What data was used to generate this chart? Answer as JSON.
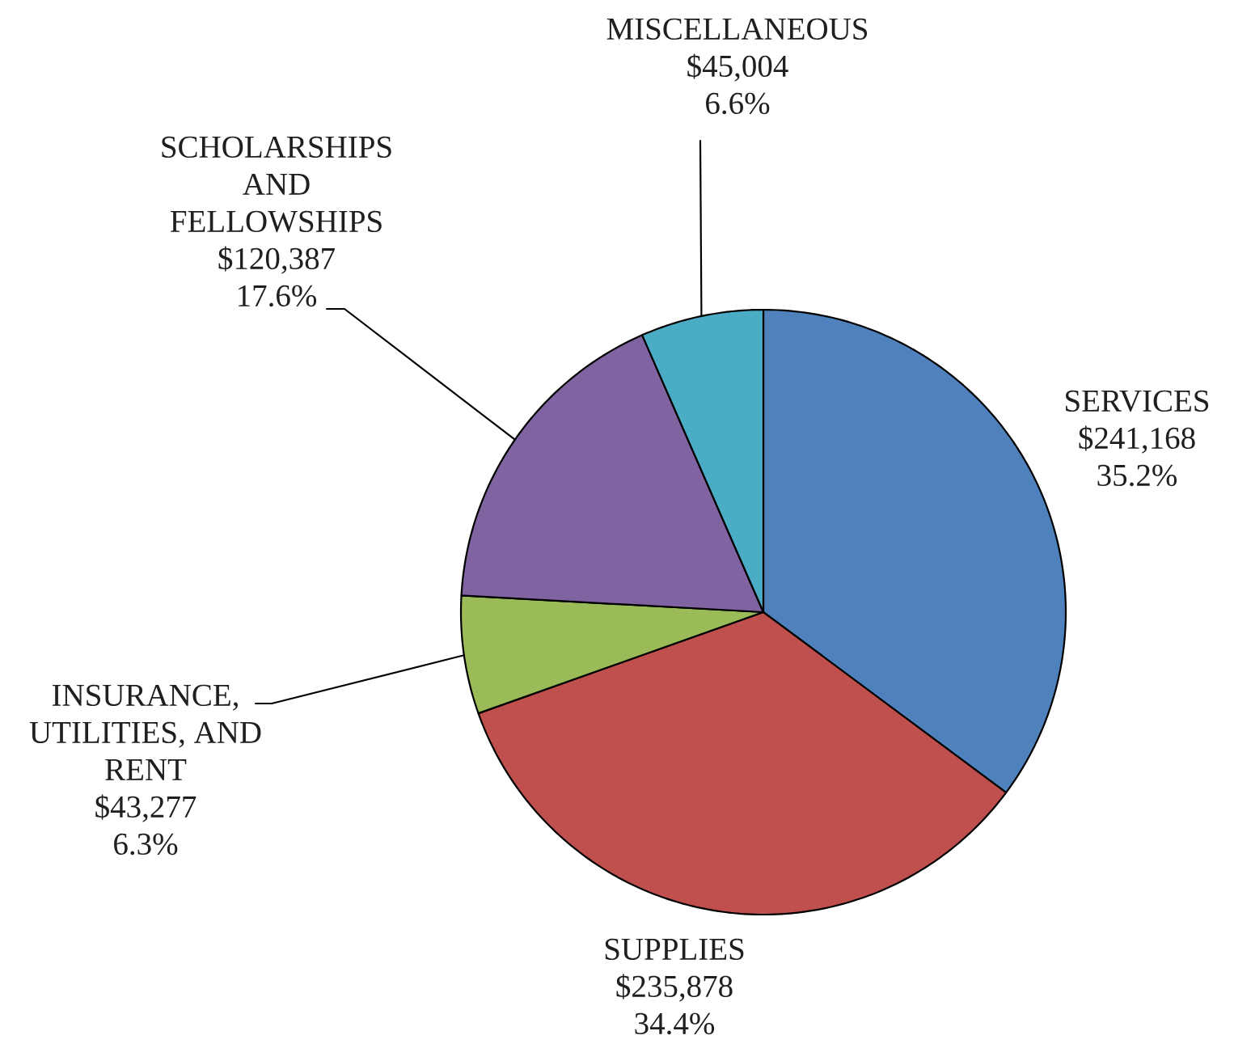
{
  "chart_data": {
    "type": "pie",
    "categories": [
      "SERVICES",
      "SUPPLIES",
      "INSURANCE, UTILITIES, AND RENT",
      "SCHOLARSHIPS AND FELLOWSHIPS",
      "MISCELLANEOUS"
    ],
    "values": [
      241168,
      235878,
      43277,
      120387,
      45004
    ],
    "colors": [
      "#4f81bd",
      "#c0504d",
      "#9bbb59",
      "#8064a2",
      "#4bacc6"
    ],
    "value_labels": [
      "$241,168 35.2%",
      "$235,878 34.4%",
      "$43,277 6.3%",
      "$120,387 17.6%",
      "$45,004 6.6%"
    ]
  }
}
